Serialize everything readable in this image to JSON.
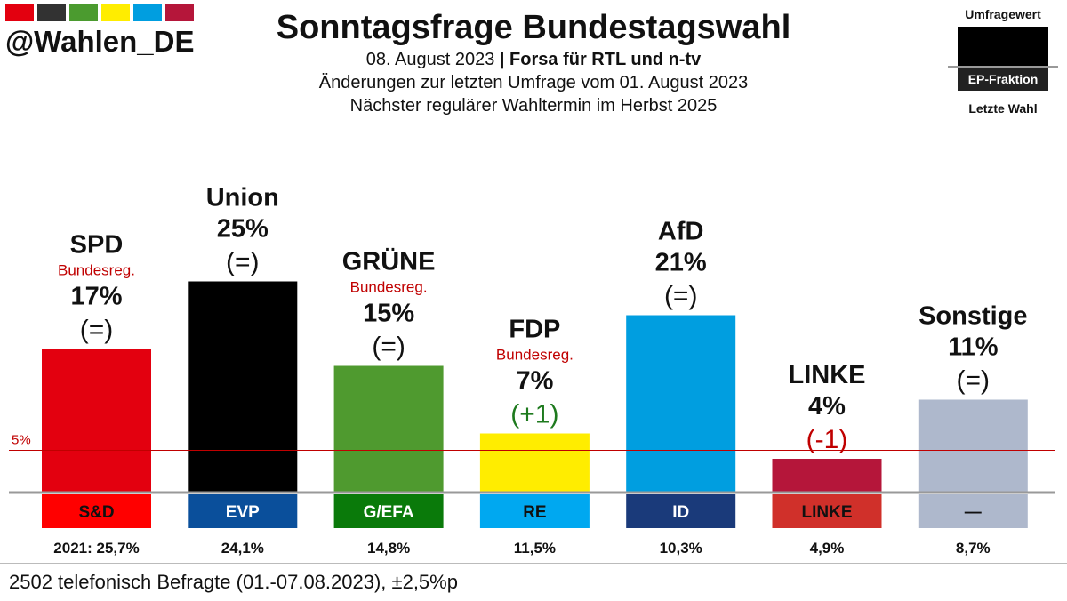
{
  "brand": {
    "handle": "@Wahlen_DE",
    "stripe_colors": [
      "#E3000F",
      "#323232",
      "#4B9B2F",
      "#FFED00",
      "#009EE0",
      "#B5163A"
    ]
  },
  "header": {
    "title": "Sonntagsfrage Bundestagswahl",
    "date": "08. August 2023",
    "separator": " | ",
    "source": "Forsa für RTL und n-tv",
    "changes": "Änderungen zur letzten Umfrage vom 01. August 2023",
    "next_election": "Nächster regulärer Wahltermin im Herbst 2025"
  },
  "legend": {
    "poll_value": "Umfragewert",
    "ep_fraction": "EP-Fraktion",
    "last_election": "Letzte Wahl"
  },
  "footer": {
    "note": "2502 telefonisch Befragte (01.-07.08.2023), ±2,5%p"
  },
  "chart_data": {
    "type": "bar",
    "ylim": [
      0,
      30
    ],
    "threshold": {
      "value": 5,
      "label": "5%"
    },
    "categories": [
      "SPD",
      "Union",
      "GRÜNE",
      "FDP",
      "AfD",
      "LINKE",
      "Sonstige"
    ],
    "values": [
      17,
      25,
      15,
      7,
      21,
      4,
      11
    ],
    "bars": [
      {
        "party": "SPD",
        "value": 17,
        "label": "17%",
        "change": "(=)",
        "change_color": "#111111",
        "government": "Bundesreg.",
        "color": "#E3000F",
        "ep_group": "S&D",
        "ep_color": "#FF0000",
        "ep_text": "#111111",
        "last_election": "2021: 25,7%"
      },
      {
        "party": "Union",
        "value": 25,
        "label": "25%",
        "change": "(=)",
        "change_color": "#111111",
        "government": "",
        "color": "#000000",
        "ep_group": "EVP",
        "ep_color": "#0A4F9B",
        "ep_text": "#ffffff",
        "last_election": "24,1%"
      },
      {
        "party": "GRÜNE",
        "value": 15,
        "label": "15%",
        "change": "(=)",
        "change_color": "#111111",
        "government": "Bundesreg.",
        "color": "#4F9A2F",
        "ep_group": "G/EFA",
        "ep_color": "#0A7A0A",
        "ep_text": "#ffffff",
        "last_election": "14,8%"
      },
      {
        "party": "FDP",
        "value": 7,
        "label": "7%",
        "change": "(+1)",
        "change_color": "#1E7A1E",
        "government": "Bundesreg.",
        "color": "#FFED00",
        "ep_group": "RE",
        "ep_color": "#00A8F0",
        "ep_text": "#111111",
        "last_election": "11,5%"
      },
      {
        "party": "AfD",
        "value": 21,
        "label": "21%",
        "change": "(=)",
        "change_color": "#111111",
        "government": "",
        "color": "#009EE0",
        "ep_group": "ID",
        "ep_color": "#1A3A7A",
        "ep_text": "#ffffff",
        "last_election": "10,3%"
      },
      {
        "party": "LINKE",
        "value": 4,
        "label": "4%",
        "change": "(-1)",
        "change_color": "#C00000",
        "government": "",
        "color": "#B5163A",
        "ep_group": "LINKE",
        "ep_color": "#D0302A",
        "ep_text": "#111111",
        "last_election": "4,9%"
      },
      {
        "party": "Sonstige",
        "value": 11,
        "label": "11%",
        "change": "(=)",
        "change_color": "#111111",
        "government": "",
        "color": "#AEB8CC",
        "ep_group": "—",
        "ep_color": "#AEB8CC",
        "ep_text": "#111111",
        "last_election": "8,7%"
      }
    ],
    "government_color": "#C00000",
    "threshold_color": "#C00000"
  }
}
